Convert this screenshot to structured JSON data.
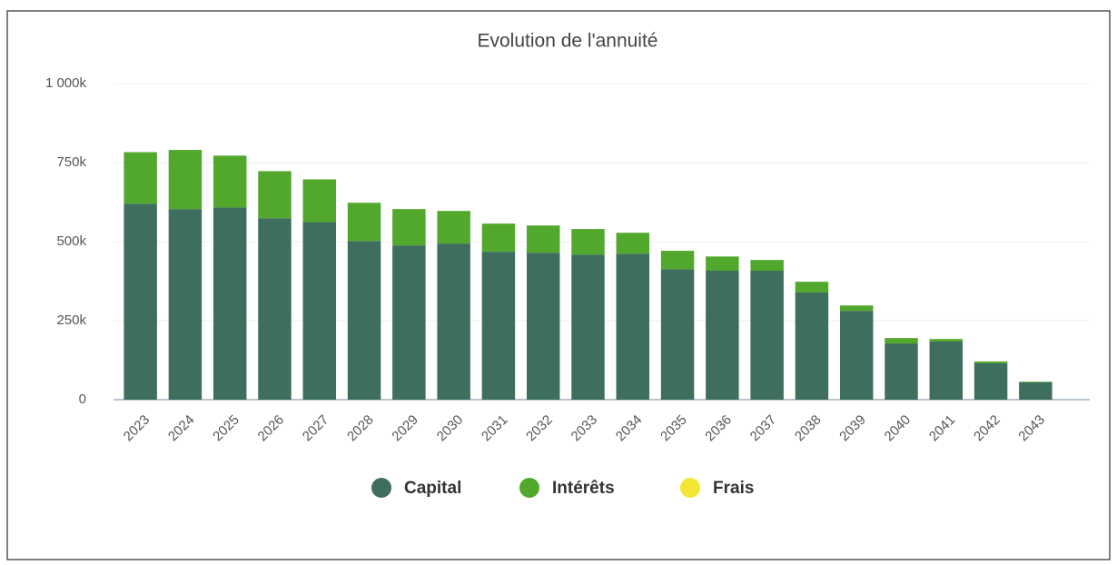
{
  "chart_data": {
    "type": "stacked_bar",
    "title": "Evolution de l'annuité",
    "categories": [
      "2023",
      "2024",
      "2025",
      "2026",
      "2027",
      "2028",
      "2029",
      "2030",
      "2031",
      "2032",
      "2033",
      "2034",
      "2035",
      "2036",
      "2037",
      "2038",
      "2039",
      "2040",
      "2041",
      "2042",
      "2043"
    ],
    "series": [
      {
        "name": "Capital",
        "color": "#3e6e5d",
        "values": [
          620000,
          603000,
          608000,
          574000,
          562000,
          502000,
          488000,
          494000,
          468000,
          465000,
          459000,
          462000,
          413000,
          408000,
          408000,
          339000,
          281000,
          178000,
          184000,
          115000,
          55000
        ]
      },
      {
        "name": "Intérêts",
        "color": "#52a82c",
        "values": [
          163000,
          187000,
          164000,
          149000,
          135000,
          121000,
          115000,
          103000,
          89000,
          86000,
          81000,
          66000,
          58000,
          45000,
          34000,
          34000,
          17000,
          17000,
          8000,
          6000,
          2000
        ]
      },
      {
        "name": "Frais",
        "color": "#f3e634",
        "values": [
          0,
          0,
          0,
          0,
          0,
          0,
          0,
          0,
          0,
          0,
          0,
          0,
          0,
          0,
          0,
          0,
          0,
          0,
          0,
          0,
          0
        ]
      }
    ],
    "ylim": [
      0,
      1000000
    ],
    "yticks": [
      0,
      {
        "value": 250000,
        "label": "250k"
      },
      {
        "value": 500000,
        "label": "500k"
      },
      {
        "value": 750000,
        "label": "750k"
      },
      {
        "value": 1000000,
        "label": "1 000k"
      }
    ],
    "grid": true
  }
}
